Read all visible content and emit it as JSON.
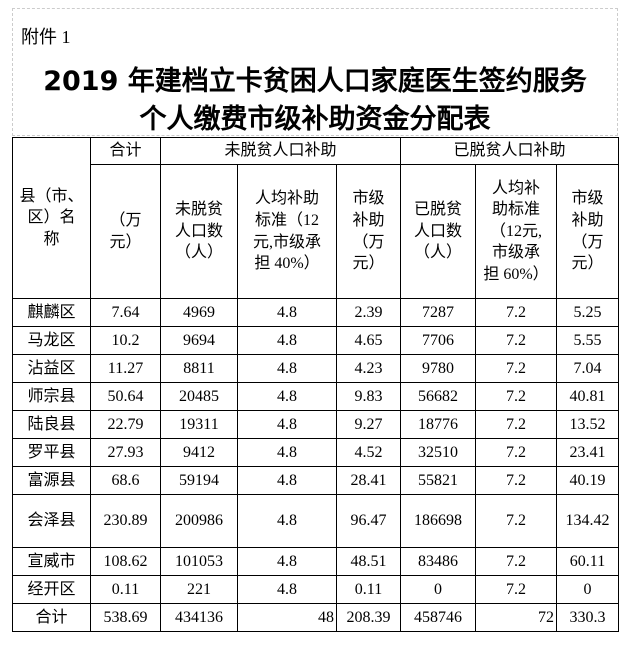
{
  "attachment": "附件 1",
  "title": [
    "2019 年建档立卡贫困人口家庭医生签约服务",
    "个人缴费市级补助资金分配表"
  ],
  "table": {
    "header": {
      "name_col": [
        "县（市、",
        "区）名",
        "称"
      ],
      "total_col": {
        "title": "合计",
        "unit": [
          "（万",
          "元）"
        ]
      },
      "groups": [
        {
          "title": "未脱贫人口补助",
          "columns": [
            [
              "未脱贫",
              "人口数",
              "（人）"
            ],
            [
              "人均补助",
              "标准（12",
              "元,市级承",
              "担 40%）"
            ],
            [
              "市级",
              "补助",
              "（万",
              "元）"
            ]
          ]
        },
        {
          "title": "已脱贫人口补助",
          "columns": [
            [
              "已脱贫",
              "人口数",
              "（人）"
            ],
            [
              "人均补",
              "助标准",
              "（12元,",
              "市级承",
              "担 60%）"
            ],
            [
              "市级",
              "补助",
              "（万",
              "元）"
            ]
          ]
        }
      ]
    },
    "rows": [
      [
        "麒麟区",
        "7.64",
        "4969",
        "4.8",
        "2.39",
        "7287",
        "7.2",
        "5.25"
      ],
      [
        "马龙区",
        "10.2",
        "9694",
        "4.8",
        "4.65",
        "7706",
        "7.2",
        "5.55"
      ],
      [
        "沾益区",
        "11.27",
        "8811",
        "4.8",
        "4.23",
        "9780",
        "7.2",
        "7.04"
      ],
      [
        "师宗县",
        "50.64",
        "20485",
        "4.8",
        "9.83",
        "56682",
        "7.2",
        "40.81"
      ],
      [
        "陆良县",
        "22.79",
        "19311",
        "4.8",
        "9.27",
        "18776",
        "7.2",
        "13.52"
      ],
      [
        "罗平县",
        "27.93",
        "9412",
        "4.8",
        "4.52",
        "32510",
        "7.2",
        "23.41"
      ],
      [
        "富源县",
        "68.6",
        "59194",
        "4.8",
        "28.41",
        "55821",
        "7.2",
        "40.19"
      ],
      [
        "会泽县",
        "230.89",
        "200986",
        "4.8",
        "96.47",
        "186698",
        "7.2",
        "134.42"
      ],
      [
        "宣威市",
        "108.62",
        "101053",
        "4.8",
        "48.51",
        "83486",
        "7.2",
        "60.11"
      ],
      [
        "经开区",
        "0.11",
        "221",
        "4.8",
        "0.11",
        "0",
        "7.2",
        "0"
      ],
      [
        "合计",
        "538.69",
        "434136",
        "48",
        "208.39",
        "458746",
        "72",
        "330.3"
      ]
    ]
  }
}
